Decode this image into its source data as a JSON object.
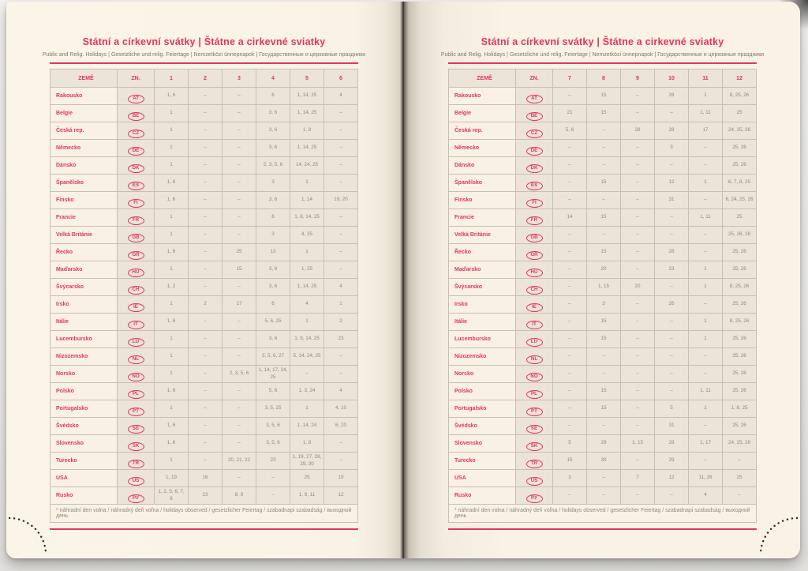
{
  "page": {
    "title": "Státní a církevní svátky | Štátne a cirkevné sviatky",
    "subtitle": "Public and Relig. Holidays | Gesetzliche und relig. Feiertage | Nemzetközi ünnepnapok | Государственные и церковные праздники",
    "footnote": "* náhradní den volna / náhradný deň voľna / holidays observed / gesetzlicher Feiertag / szabadnapi szabadság / выходной день"
  },
  "colors": {
    "accent_pink": "#e23560",
    "page_cream": "#faf3e5",
    "cell_beige": "#ece4d6",
    "value_gray": "#8e897d"
  },
  "table": {
    "country_header": "ZEMĚ",
    "code_header": "ZN.",
    "left_months": [
      "1",
      "2",
      "3",
      "4",
      "5",
      "6"
    ],
    "right_months": [
      "7",
      "8",
      "9",
      "10",
      "11",
      "12"
    ],
    "rows": [
      {
        "country": "Rakousko",
        "code": "AT",
        "left": [
          "1, 6",
          "–",
          "–",
          "6",
          "1, 14, 25",
          "4"
        ],
        "right": [
          "–",
          "15",
          "–",
          "26",
          "1",
          "8, 25, 26"
        ]
      },
      {
        "country": "Belgie",
        "code": "BE",
        "left": [
          "1",
          "–",
          "–",
          "3, 6",
          "1, 14, 25",
          "–"
        ],
        "right": [
          "21",
          "15",
          "–",
          "–",
          "1, 11",
          "25"
        ]
      },
      {
        "country": "Česká rep.",
        "code": "CZ",
        "left": [
          "1",
          "–",
          "–",
          "3, 6",
          "1, 8",
          "–"
        ],
        "right": [
          "5, 6",
          "–",
          "28",
          "28",
          "17",
          "24, 25, 26"
        ]
      },
      {
        "country": "Německo",
        "code": "DE",
        "left": [
          "1",
          "–",
          "–",
          "3, 6",
          "1, 14, 25",
          "–"
        ],
        "right": [
          "–",
          "–",
          "–",
          "3",
          "–",
          "25, 26"
        ]
      },
      {
        "country": "Dánsko",
        "code": "DK",
        "left": [
          "1",
          "–",
          "–",
          "2, 3, 5, 6",
          "14, 24, 25",
          "–"
        ],
        "right": [
          "–",
          "–",
          "–",
          "–",
          "–",
          "25, 26"
        ]
      },
      {
        "country": "Španělsko",
        "code": "ES",
        "left": [
          "1, 6",
          "–",
          "–",
          "3",
          "1",
          "–"
        ],
        "right": [
          "–",
          "15",
          "–",
          "12",
          "1",
          "6, 7, 8, 25"
        ]
      },
      {
        "country": "Finsko",
        "code": "FI",
        "left": [
          "1, 6",
          "–",
          "–",
          "3, 6",
          "1, 14",
          "19, 20"
        ],
        "right": [
          "–",
          "–",
          "–",
          "31",
          "–",
          "6, 24, 25, 26"
        ]
      },
      {
        "country": "Francie",
        "code": "FR",
        "left": [
          "1",
          "–",
          "–",
          "6",
          "1, 8, 14, 25",
          "–"
        ],
        "right": [
          "14",
          "15",
          "–",
          "–",
          "1, 11",
          "25"
        ]
      },
      {
        "country": "Velká Británie",
        "code": "GB",
        "left": [
          "1",
          "–",
          "–",
          "3",
          "4, 25",
          "–"
        ],
        "right": [
          "–",
          "–",
          "–",
          "–",
          "–",
          "25, 26, 28"
        ]
      },
      {
        "country": "Řecko",
        "code": "GR",
        "left": [
          "1, 6",
          "–",
          "25",
          "13",
          "1",
          "–"
        ],
        "right": [
          "–",
          "15",
          "–",
          "28",
          "–",
          "25, 26"
        ]
      },
      {
        "country": "Maďarsko",
        "code": "HU",
        "left": [
          "1",
          "–",
          "15",
          "3, 6",
          "1, 25",
          "–"
        ],
        "right": [
          "–",
          "20",
          "–",
          "23",
          "1",
          "25, 26"
        ]
      },
      {
        "country": "Švýcarsko",
        "code": "CH",
        "left": [
          "1, 2",
          "–",
          "–",
          "3, 6",
          "1, 14, 25",
          "4"
        ],
        "right": [
          "–",
          "1, 15",
          "20",
          "–",
          "1",
          "8, 25, 26"
        ]
      },
      {
        "country": "Irsko",
        "code": "IE",
        "left": [
          "1",
          "2",
          "17",
          "6",
          "4",
          "1"
        ],
        "right": [
          "–",
          "3",
          "–",
          "26",
          "–",
          "25, 26"
        ]
      },
      {
        "country": "Itálie",
        "code": "IT",
        "left": [
          "1, 6",
          "–",
          "–",
          "5, 6, 25",
          "1",
          "2"
        ],
        "right": [
          "–",
          "15",
          "–",
          "–",
          "1",
          "8, 25, 26"
        ]
      },
      {
        "country": "Lucembursko",
        "code": "LU",
        "left": [
          "1",
          "–",
          "–",
          "3, 6",
          "1, 9, 14, 25",
          "23"
        ],
        "right": [
          "–",
          "15",
          "–",
          "–",
          "1",
          "25, 26"
        ]
      },
      {
        "country": "Nizozemsko",
        "code": "NL",
        "left": [
          "1",
          "–",
          "–",
          "3, 5, 6, 27",
          "5, 14, 24, 25",
          "–"
        ],
        "right": [
          "–",
          "–",
          "–",
          "–",
          "–",
          "25, 26"
        ]
      },
      {
        "country": "Norsko",
        "code": "NO",
        "left": [
          "1",
          "–",
          "2, 3, 5, 6",
          "1, 14, 17, 24, 25",
          "–",
          "–"
        ],
        "right": [
          "–",
          "–",
          "–",
          "–",
          "–",
          "25, 26"
        ]
      },
      {
        "country": "Polsko",
        "code": "PL",
        "left": [
          "1, 6",
          "–",
          "–",
          "5, 6",
          "1, 3, 24",
          "4"
        ],
        "right": [
          "–",
          "15",
          "–",
          "–",
          "1, 11",
          "25, 26"
        ]
      },
      {
        "country": "Portugalsko",
        "code": "PT",
        "left": [
          "1",
          "–",
          "–",
          "3, 5, 25",
          "1",
          "4, 10"
        ],
        "right": [
          "–",
          "15",
          "–",
          "5",
          "1",
          "1, 8, 25"
        ]
      },
      {
        "country": "Švédsko",
        "code": "SE",
        "left": [
          "1, 6",
          "–",
          "–",
          "3, 5, 6",
          "1, 14, 24",
          "6, 20"
        ],
        "right": [
          "–",
          "–",
          "–",
          "31",
          "–",
          "25, 26"
        ]
      },
      {
        "country": "Slovensko",
        "code": "SK",
        "left": [
          "1, 6",
          "–",
          "–",
          "3, 5, 6",
          "1, 8",
          "–"
        ],
        "right": [
          "5",
          "29",
          "1, 15",
          "28",
          "1, 17",
          "24, 25, 26"
        ]
      },
      {
        "country": "Turecko",
        "code": "TR",
        "left": [
          "1",
          "–",
          "20, 21, 22",
          "23",
          "1, 19, 27, 28, 29, 30",
          "–"
        ],
        "right": [
          "15",
          "30",
          "–",
          "29",
          "–",
          "–"
        ]
      },
      {
        "country": "USA",
        "code": "US",
        "left": [
          "1, 19",
          "16",
          "–",
          "–",
          "25",
          "19"
        ],
        "right": [
          "3",
          "–",
          "7",
          "12",
          "11, 26",
          "25"
        ]
      },
      {
        "country": "Rusko",
        "code": "РУ",
        "left": [
          "1, 2, 5, 6, 7, 8",
          "23",
          "8, 9",
          "–",
          "1, 9, 11",
          "12"
        ],
        "right": [
          "–",
          "–",
          "–",
          "–",
          "4",
          "–"
        ]
      }
    ]
  }
}
